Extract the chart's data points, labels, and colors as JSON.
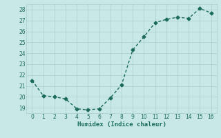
{
  "x": [
    0,
    1,
    2,
    3,
    4,
    5,
    6,
    7,
    8,
    9,
    10,
    11,
    12,
    13,
    14,
    15,
    16
  ],
  "y": [
    21.5,
    20.1,
    20.0,
    19.8,
    18.9,
    18.8,
    18.9,
    19.9,
    21.1,
    24.3,
    25.5,
    26.8,
    27.1,
    27.3,
    27.2,
    28.1,
    27.7
  ],
  "xlabel": "Humidex (Indice chaleur)",
  "ylim": [
    18.5,
    28.5
  ],
  "xlim": [
    -0.5,
    16.5
  ],
  "yticks": [
    19,
    20,
    21,
    22,
    23,
    24,
    25,
    26,
    27,
    28
  ],
  "xticks": [
    0,
    1,
    2,
    3,
    4,
    5,
    6,
    7,
    8,
    9,
    10,
    11,
    12,
    13,
    14,
    15,
    16
  ],
  "line_color": "#1a6b5a",
  "bg_color": "#c8e8e5",
  "grid_color": "#aacfcc",
  "marker": "D",
  "marker_size": 2.5,
  "line_width": 1.0
}
